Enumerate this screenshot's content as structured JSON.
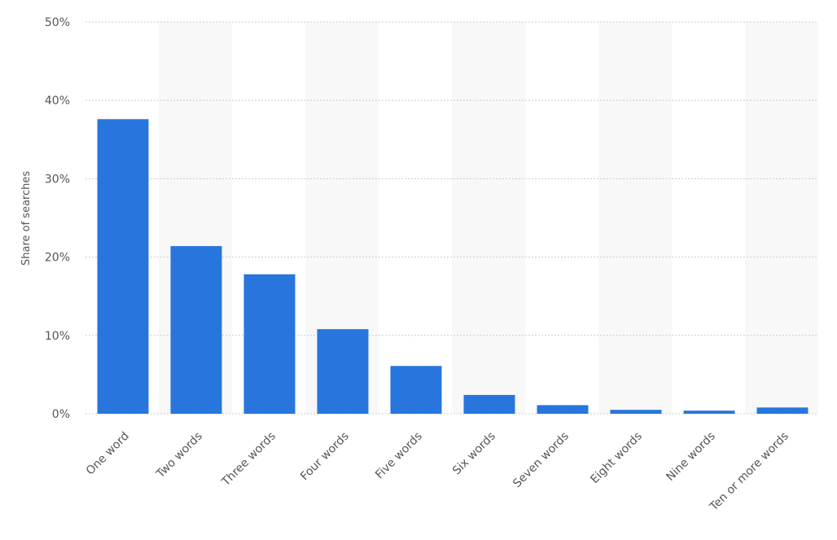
{
  "chart_data": {
    "type": "bar",
    "y_label": "Share of searches",
    "categories": [
      "One word",
      "Two words",
      "Three words",
      "Four words",
      "Five words",
      "Six words",
      "Seven words",
      "Eight words",
      "Nine words",
      "Ten or more words"
    ],
    "values": [
      37.6,
      21.4,
      17.8,
      10.8,
      6.1,
      2.4,
      1.1,
      0.5,
      0.4,
      0.8
    ],
    "color": "#2876dd",
    "ylim": [
      0,
      50
    ],
    "yticks": [
      {
        "value": 0,
        "label": "0%"
      },
      {
        "value": 10,
        "label": "10%"
      },
      {
        "value": 20,
        "label": "20%"
      },
      {
        "value": 30,
        "label": "30%"
      },
      {
        "value": 40,
        "label": "40%"
      },
      {
        "value": 50,
        "label": "50%"
      }
    ],
    "grid": true
  }
}
